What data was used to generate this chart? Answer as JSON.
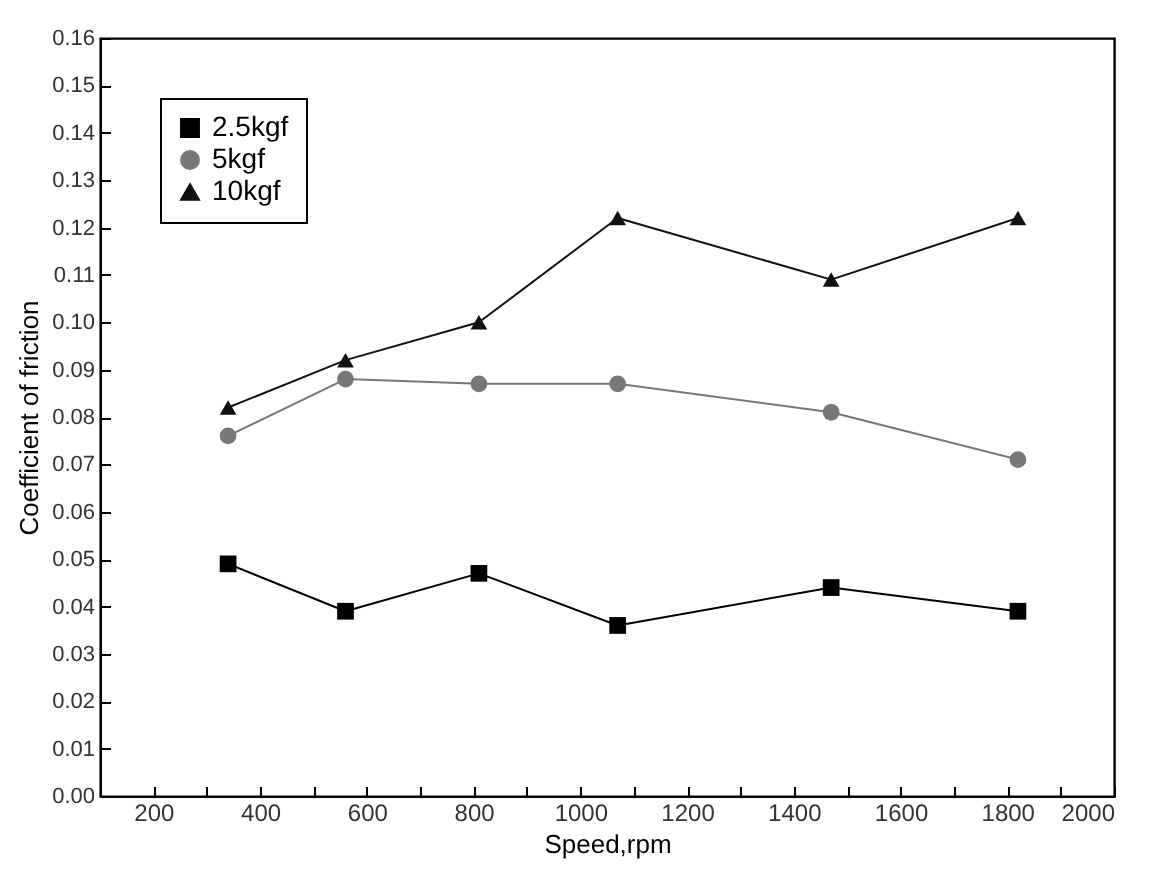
{
  "chart_data": {
    "type": "line",
    "xlabel": "Speed,rpm",
    "ylabel": "Coefficient of friction",
    "xlim": [
      100,
      2000
    ],
    "ylim": [
      0,
      0.16
    ],
    "xticks": [
      200,
      {
        "value": 300,
        "label": null
      },
      400,
      {
        "value": 500,
        "label": null
      },
      600,
      {
        "value": 700,
        "label": null
      },
      800,
      {
        "value": 900,
        "label": null
      },
      1000,
      {
        "value": 1100,
        "label": null
      },
      1200,
      {
        "value": 1300,
        "label": null
      },
      1400,
      {
        "value": 1500,
        "label": null
      },
      1600,
      {
        "value": 1700,
        "label": null
      },
      1800,
      {
        "value": 1900,
        "label": null
      },
      2000
    ],
    "yticks": [
      {
        "value": 0,
        "label": "0.00"
      },
      {
        "value": 0.01,
        "label": "0.01"
      },
      {
        "value": 0.02,
        "label": "0.02"
      },
      {
        "value": 0.03,
        "label": "0.03"
      },
      {
        "value": 0.04,
        "label": "0.04"
      },
      {
        "value": 0.05,
        "label": "0.05"
      },
      {
        "value": 0.06,
        "label": "0.06"
      },
      {
        "value": 0.07,
        "label": "0.07"
      },
      {
        "value": 0.08,
        "label": "0.08"
      },
      {
        "value": 0.09,
        "label": "0.09"
      },
      {
        "value": 0.1,
        "label": "0.10"
      },
      {
        "value": 0.11,
        "label": "0.11"
      },
      {
        "value": 0.12,
        "label": "0.12"
      },
      {
        "value": 0.13,
        "label": "0.13"
      },
      {
        "value": 0.14,
        "label": "0.14"
      },
      {
        "value": 0.15,
        "label": "0.15"
      },
      {
        "value": 0.16,
        "label": "0.16"
      }
    ],
    "x": [
      340,
      560,
      810,
      1070,
      1470,
      1820
    ],
    "legend": "top left",
    "grid": false,
    "series": [
      {
        "name": "2.5kgf",
        "color": "#000000",
        "marker": "square",
        "values": [
          0.049,
          0.039,
          0.047,
          0.036,
          0.044,
          0.039
        ]
      },
      {
        "name": "5kgf",
        "color": "#777777",
        "marker": "circle",
        "values": [
          0.076,
          0.088,
          0.087,
          0.087,
          0.081,
          0.071
        ]
      },
      {
        "name": "10kgf",
        "color": "#111111",
        "marker": "triangle",
        "values": [
          0.082,
          0.092,
          0.1,
          0.122,
          0.109,
          0.122
        ]
      }
    ]
  }
}
